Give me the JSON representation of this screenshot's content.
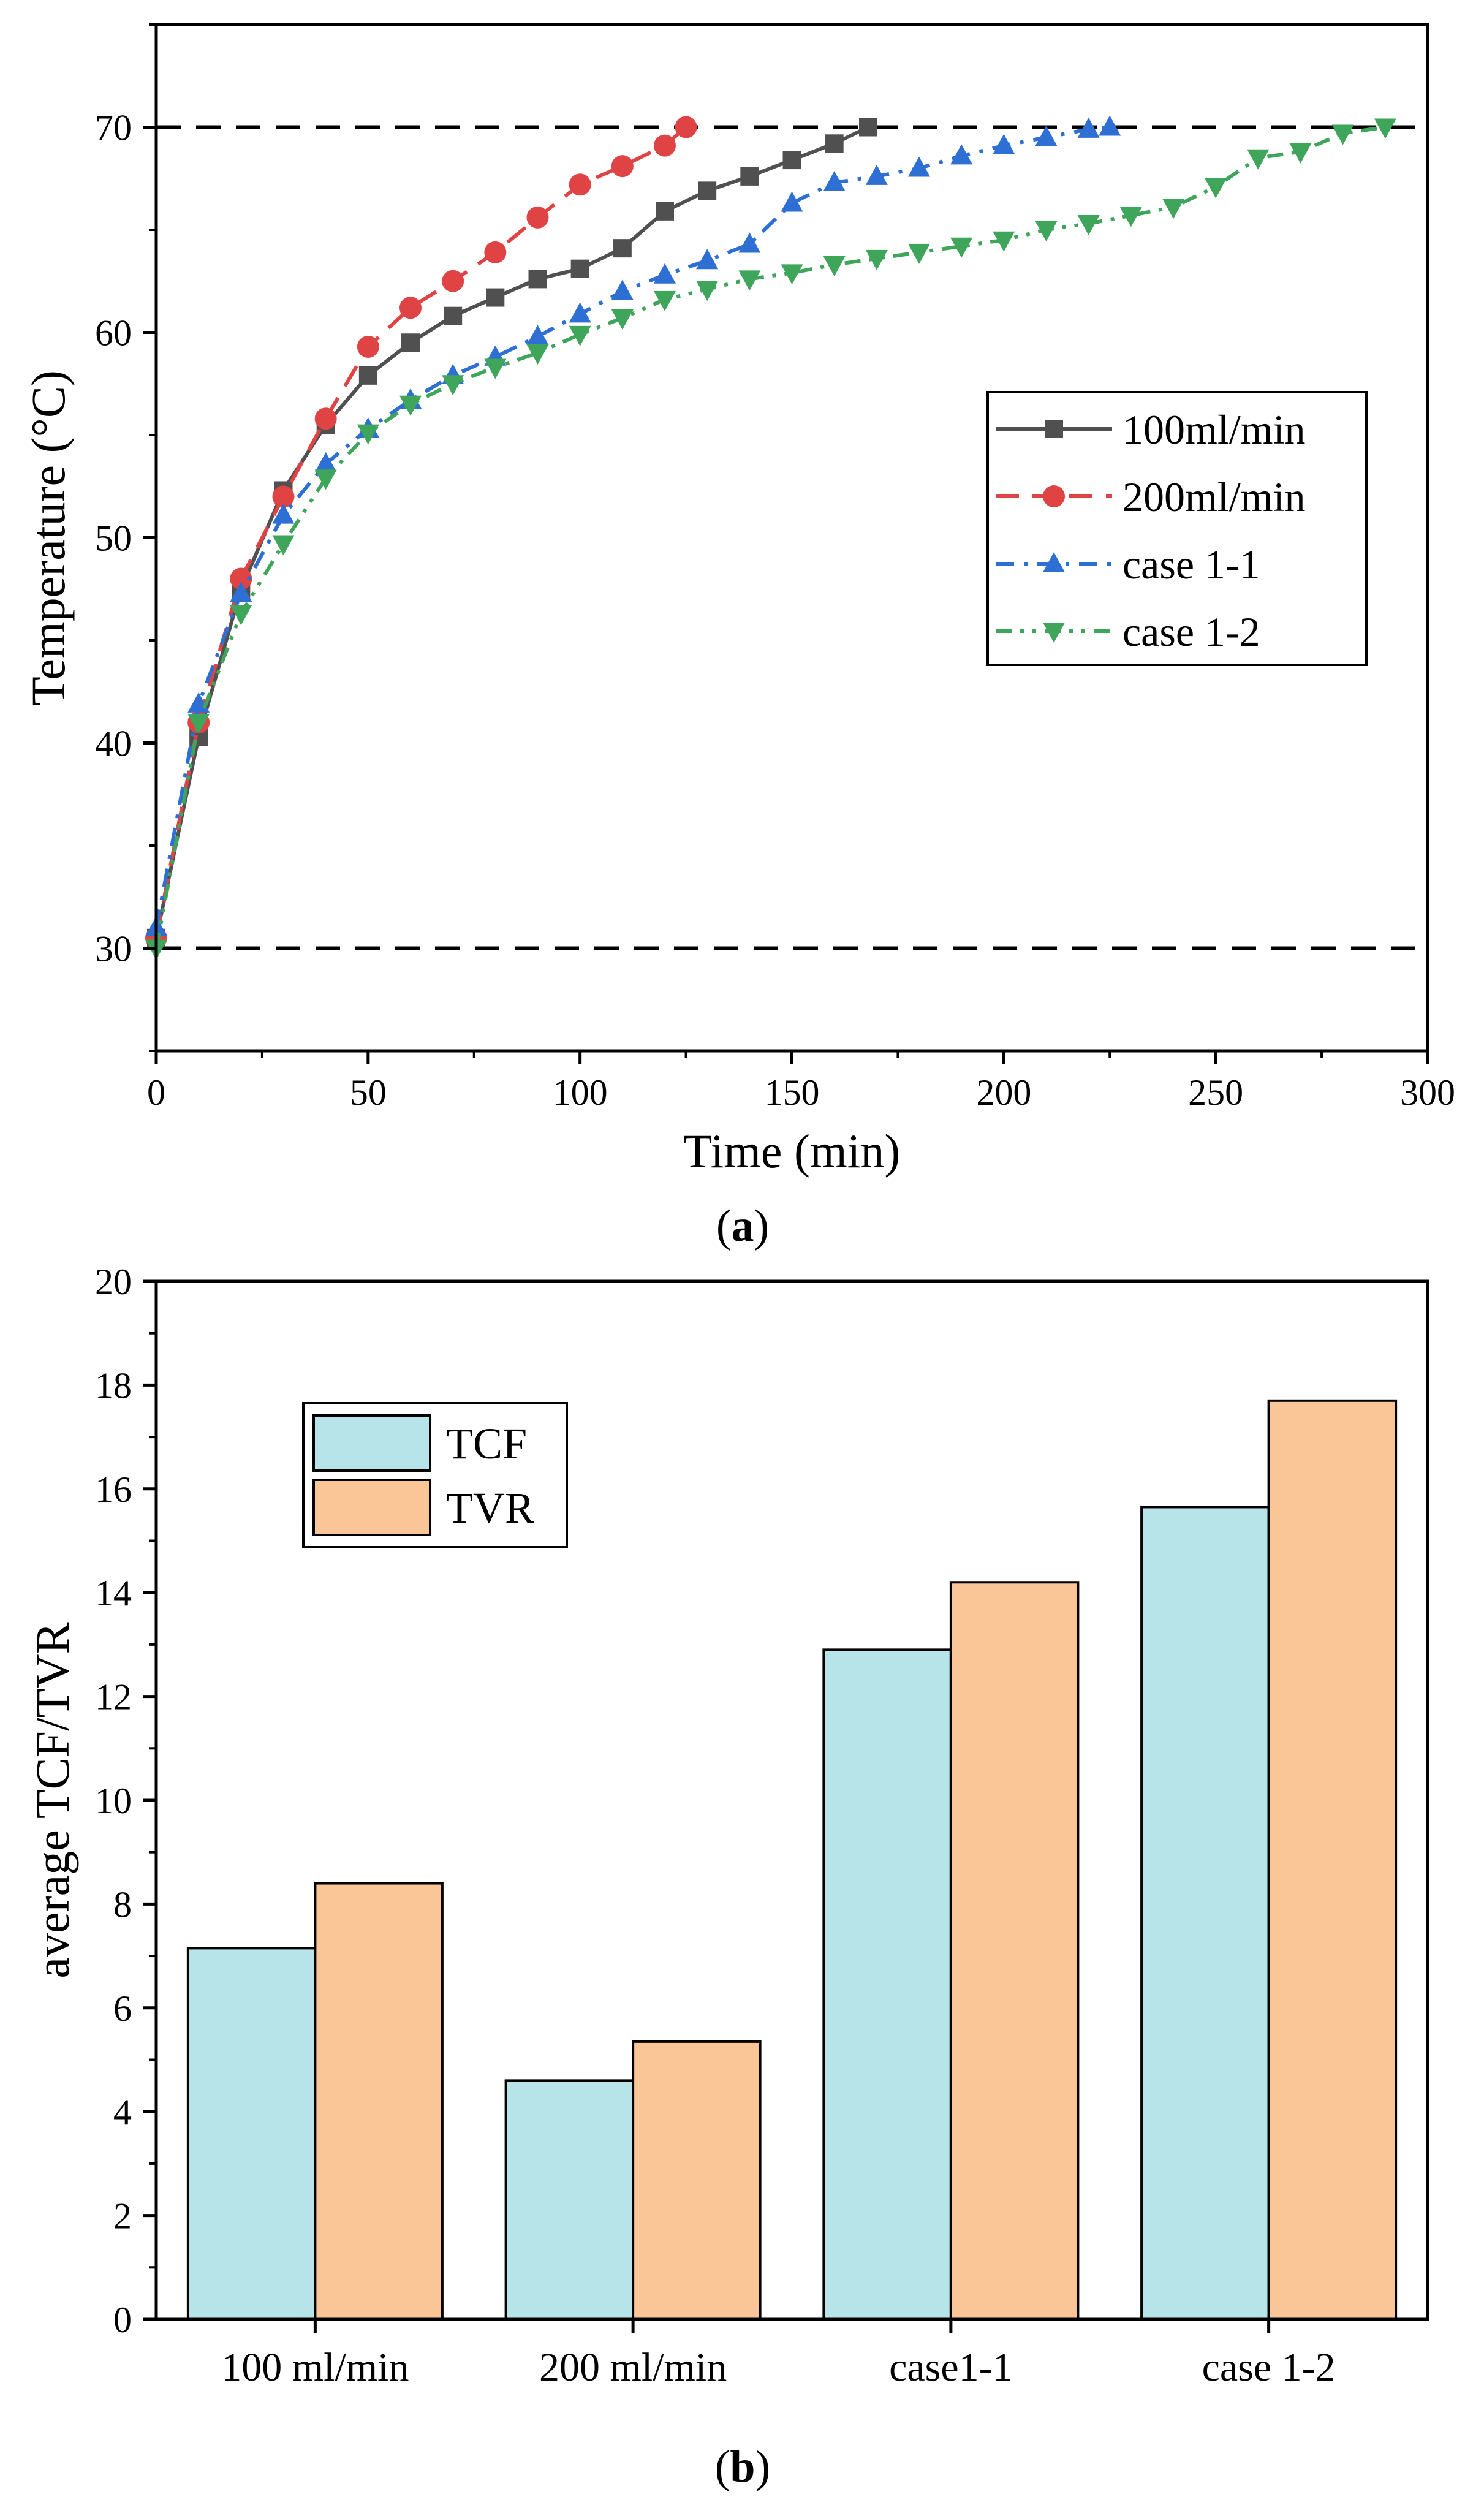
{
  "chart_data": [
    {
      "type": "line",
      "panel_label": "a",
      "title": "",
      "xlabel": "Time (min)",
      "ylabel": "Temperature (°C)",
      "xlim": [
        0,
        300
      ],
      "ylim": [
        25,
        75
      ],
      "xticks": [
        0,
        50,
        100,
        150,
        200,
        250,
        300
      ],
      "yticks": [
        30,
        40,
        50,
        60,
        70
      ],
      "reference_lines": [
        30,
        70
      ],
      "legend_position": "center-right",
      "series": [
        {
          "name": "100ml/min",
          "color": "#505050",
          "line_style": "solid",
          "marker": "square",
          "x": [
            0,
            10,
            20,
            30,
            40,
            50,
            60,
            70,
            80,
            90,
            100,
            110,
            120,
            130,
            140,
            150,
            160,
            168
          ],
          "y": [
            30.5,
            40.3,
            47.5,
            52.3,
            55.5,
            57.9,
            59.5,
            60.8,
            61.7,
            62.6,
            63.1,
            64.1,
            65.9,
            66.9,
            67.6,
            68.4,
            69.2,
            70
          ]
        },
        {
          "name": "200ml/min",
          "color": "#e04343",
          "line_style": "dashed",
          "marker": "circle",
          "x": [
            0,
            10,
            20,
            30,
            40,
            50,
            60,
            70,
            80,
            90,
            100,
            110,
            120,
            125
          ],
          "y": [
            30.5,
            41.0,
            48.0,
            52.0,
            55.8,
            59.3,
            61.2,
            62.5,
            63.9,
            65.6,
            67.2,
            68.1,
            69.1,
            70
          ]
        },
        {
          "name": "case 1-1",
          "color": "#2e6fd4",
          "line_style": "dashdot",
          "marker": "triangle-up",
          "x": [
            0,
            10,
            20,
            30,
            40,
            50,
            60,
            70,
            80,
            90,
            100,
            110,
            120,
            130,
            140,
            150,
            160,
            170,
            180,
            190,
            200,
            210,
            220,
            225
          ],
          "y": [
            31.0,
            41.9,
            47.3,
            51.1,
            53.6,
            55.3,
            56.7,
            57.9,
            58.8,
            59.8,
            60.9,
            62.0,
            62.8,
            63.5,
            64.3,
            66.3,
            67.3,
            67.6,
            68.0,
            68.6,
            69.1,
            69.5,
            69.9,
            70
          ]
        },
        {
          "name": "case 1-2",
          "color": "#3fa55a",
          "line_style": "dashdotdot",
          "marker": "triangle-down",
          "x": [
            0,
            10,
            20,
            30,
            40,
            50,
            60,
            70,
            80,
            90,
            100,
            110,
            120,
            130,
            140,
            150,
            160,
            170,
            180,
            190,
            200,
            210,
            220,
            230,
            240,
            250,
            260,
            270,
            280,
            290
          ],
          "y": [
            30.0,
            41.0,
            46.3,
            49.7,
            52.9,
            55.1,
            56.5,
            57.5,
            58.3,
            59.0,
            59.9,
            60.7,
            61.6,
            62.1,
            62.6,
            62.9,
            63.3,
            63.6,
            63.9,
            64.2,
            64.5,
            65.0,
            65.3,
            65.7,
            66.1,
            67.1,
            68.5,
            68.8,
            69.7,
            70.0
          ]
        }
      ]
    },
    {
      "type": "bar",
      "panel_label": "b",
      "title": "",
      "xlabel": "",
      "ylabel": "average TCF/TVR",
      "ylim": [
        0,
        20
      ],
      "yticks": [
        0,
        2,
        4,
        6,
        8,
        10,
        12,
        14,
        16,
        18,
        20
      ],
      "categories": [
        "100 ml/min",
        "200 ml/min",
        "case1-1",
        "case 1-2"
      ],
      "legend_position": "upper-left",
      "series": [
        {
          "name": "TCF",
          "color": "#b7e4e9",
          "values": [
            7.15,
            4.6,
            12.9,
            15.65
          ]
        },
        {
          "name": "TVR",
          "color": "#fbc697",
          "values": [
            8.4,
            5.35,
            14.2,
            17.7
          ]
        }
      ]
    }
  ]
}
